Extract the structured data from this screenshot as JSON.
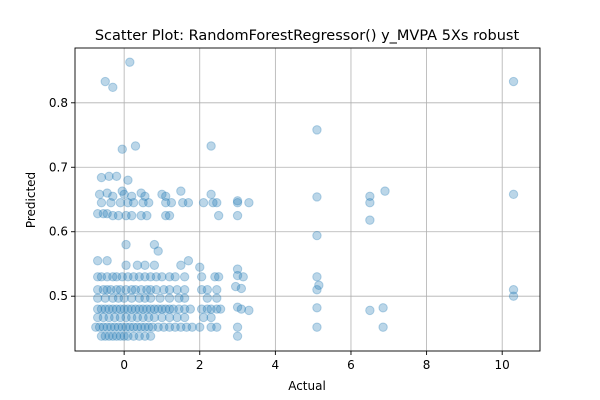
{
  "chart_data": {
    "type": "scatter",
    "title": "Scatter Plot: RandomForestRegressor() y_MVPA 5Xs robust",
    "xlabel": "Actual",
    "ylabel": "Predicted",
    "xlim": [
      -1.3,
      11.0
    ],
    "ylim": [
      0.415,
      0.885
    ],
    "xticks": [
      0,
      2,
      4,
      6,
      8,
      10
    ],
    "yticks": [
      0.5,
      0.6,
      0.7,
      0.8
    ],
    "grid": true,
    "color": "#1f77b4",
    "series": [
      {
        "points": [
          [
            -0.5,
            0.833
          ],
          [
            -0.3,
            0.824
          ],
          [
            0.15,
            0.863
          ],
          [
            10.3,
            0.833
          ],
          [
            5.1,
            0.758
          ],
          [
            0.3,
            0.733
          ],
          [
            -0.05,
            0.728
          ],
          [
            2.3,
            0.733
          ],
          [
            -0.6,
            0.684
          ],
          [
            -0.4,
            0.686
          ],
          [
            -0.2,
            0.686
          ],
          [
            0.1,
            0.68
          ],
          [
            -0.05,
            0.663
          ],
          [
            -0.65,
            0.658
          ],
          [
            -0.45,
            0.66
          ],
          [
            -0.3,
            0.655
          ],
          [
            0.0,
            0.658
          ],
          [
            0.2,
            0.655
          ],
          [
            0.45,
            0.66
          ],
          [
            0.55,
            0.655
          ],
          [
            1.0,
            0.658
          ],
          [
            1.1,
            0.655
          ],
          [
            1.5,
            0.663
          ],
          [
            2.3,
            0.658
          ],
          [
            3.0,
            0.648
          ],
          [
            5.1,
            0.654
          ],
          [
            6.5,
            0.655
          ],
          [
            6.9,
            0.663
          ],
          [
            10.3,
            0.658
          ],
          [
            -0.6,
            0.645
          ],
          [
            -0.35,
            0.645
          ],
          [
            -0.1,
            0.645
          ],
          [
            0.1,
            0.645
          ],
          [
            0.25,
            0.645
          ],
          [
            0.5,
            0.645
          ],
          [
            0.65,
            0.645
          ],
          [
            1.1,
            0.645
          ],
          [
            1.25,
            0.645
          ],
          [
            1.55,
            0.645
          ],
          [
            1.7,
            0.645
          ],
          [
            2.1,
            0.645
          ],
          [
            2.35,
            0.645
          ],
          [
            2.45,
            0.645
          ],
          [
            3.0,
            0.645
          ],
          [
            3.3,
            0.645
          ],
          [
            6.5,
            0.645
          ],
          [
            -0.7,
            0.628
          ],
          [
            -0.55,
            0.628
          ],
          [
            -0.45,
            0.628
          ],
          [
            -0.3,
            0.625
          ],
          [
            -0.15,
            0.625
          ],
          [
            0.05,
            0.625
          ],
          [
            0.2,
            0.625
          ],
          [
            0.45,
            0.625
          ],
          [
            0.6,
            0.625
          ],
          [
            1.1,
            0.625
          ],
          [
            1.2,
            0.625
          ],
          [
            2.5,
            0.625
          ],
          [
            3.0,
            0.625
          ],
          [
            6.5,
            0.618
          ],
          [
            5.1,
            0.594
          ],
          [
            0.05,
            0.58
          ],
          [
            0.8,
            0.58
          ],
          [
            0.9,
            0.57
          ],
          [
            1.7,
            0.555
          ],
          [
            -0.7,
            0.555
          ],
          [
            -0.45,
            0.555
          ],
          [
            0.05,
            0.548
          ],
          [
            0.35,
            0.548
          ],
          [
            0.55,
            0.548
          ],
          [
            0.8,
            0.548
          ],
          [
            1.5,
            0.548
          ],
          [
            2.0,
            0.545
          ],
          [
            3.0,
            0.542
          ],
          [
            -0.7,
            0.53
          ],
          [
            -0.6,
            0.53
          ],
          [
            -0.45,
            0.53
          ],
          [
            -0.3,
            0.53
          ],
          [
            -0.2,
            0.53
          ],
          [
            -0.05,
            0.53
          ],
          [
            0.1,
            0.53
          ],
          [
            0.25,
            0.53
          ],
          [
            0.4,
            0.53
          ],
          [
            0.55,
            0.53
          ],
          [
            0.7,
            0.53
          ],
          [
            0.85,
            0.53
          ],
          [
            1.0,
            0.53
          ],
          [
            1.2,
            0.53
          ],
          [
            1.35,
            0.53
          ],
          [
            1.6,
            0.53
          ],
          [
            2.05,
            0.53
          ],
          [
            2.4,
            0.53
          ],
          [
            2.5,
            0.53
          ],
          [
            3.0,
            0.532
          ],
          [
            3.15,
            0.53
          ],
          [
            5.1,
            0.53
          ],
          [
            10.3,
            0.51
          ],
          [
            10.3,
            0.5
          ],
          [
            5.15,
            0.517
          ],
          [
            5.1,
            0.51
          ],
          [
            -0.7,
            0.51
          ],
          [
            -0.55,
            0.51
          ],
          [
            -0.45,
            0.51
          ],
          [
            -0.35,
            0.51
          ],
          [
            -0.2,
            0.51
          ],
          [
            -0.1,
            0.51
          ],
          [
            0.05,
            0.51
          ],
          [
            0.2,
            0.51
          ],
          [
            0.3,
            0.51
          ],
          [
            0.45,
            0.51
          ],
          [
            0.6,
            0.51
          ],
          [
            0.7,
            0.51
          ],
          [
            0.85,
            0.51
          ],
          [
            1.05,
            0.51
          ],
          [
            1.2,
            0.51
          ],
          [
            1.4,
            0.51
          ],
          [
            1.6,
            0.51
          ],
          [
            2.05,
            0.51
          ],
          [
            2.2,
            0.51
          ],
          [
            2.45,
            0.51
          ],
          [
            2.95,
            0.515
          ],
          [
            3.1,
            0.512
          ],
          [
            -0.7,
            0.497
          ],
          [
            -0.5,
            0.497
          ],
          [
            -0.3,
            0.497
          ],
          [
            -0.15,
            0.497
          ],
          [
            0.0,
            0.497
          ],
          [
            0.2,
            0.497
          ],
          [
            0.4,
            0.497
          ],
          [
            0.55,
            0.497
          ],
          [
            0.7,
            0.497
          ],
          [
            0.95,
            0.497
          ],
          [
            1.2,
            0.497
          ],
          [
            1.45,
            0.497
          ],
          [
            1.6,
            0.497
          ],
          [
            2.2,
            0.497
          ],
          [
            2.45,
            0.497
          ],
          [
            -0.7,
            0.48
          ],
          [
            -0.6,
            0.48
          ],
          [
            -0.5,
            0.48
          ],
          [
            -0.4,
            0.48
          ],
          [
            -0.3,
            0.48
          ],
          [
            -0.2,
            0.48
          ],
          [
            -0.1,
            0.48
          ],
          [
            0.0,
            0.48
          ],
          [
            0.1,
            0.48
          ],
          [
            0.2,
            0.48
          ],
          [
            0.3,
            0.48
          ],
          [
            0.4,
            0.48
          ],
          [
            0.5,
            0.48
          ],
          [
            0.6,
            0.48
          ],
          [
            0.7,
            0.48
          ],
          [
            0.8,
            0.48
          ],
          [
            0.9,
            0.48
          ],
          [
            1.0,
            0.48
          ],
          [
            1.1,
            0.48
          ],
          [
            1.2,
            0.48
          ],
          [
            1.3,
            0.48
          ],
          [
            1.45,
            0.48
          ],
          [
            1.6,
            0.48
          ],
          [
            1.75,
            0.48
          ],
          [
            2.05,
            0.48
          ],
          [
            2.2,
            0.48
          ],
          [
            2.3,
            0.48
          ],
          [
            2.45,
            0.48
          ],
          [
            2.55,
            0.48
          ],
          [
            3.0,
            0.483
          ],
          [
            3.1,
            0.48
          ],
          [
            3.3,
            0.478
          ],
          [
            5.1,
            0.482
          ],
          [
            6.5,
            0.478
          ],
          [
            6.85,
            0.482
          ],
          [
            -0.7,
            0.467
          ],
          [
            -0.55,
            0.467
          ],
          [
            -0.4,
            0.467
          ],
          [
            -0.25,
            0.467
          ],
          [
            -0.1,
            0.467
          ],
          [
            0.05,
            0.467
          ],
          [
            0.2,
            0.467
          ],
          [
            0.35,
            0.467
          ],
          [
            0.5,
            0.467
          ],
          [
            0.65,
            0.467
          ],
          [
            0.8,
            0.467
          ],
          [
            1.0,
            0.467
          ],
          [
            1.2,
            0.467
          ],
          [
            1.4,
            0.467
          ],
          [
            1.6,
            0.467
          ],
          [
            2.1,
            0.467
          ],
          [
            2.3,
            0.467
          ],
          [
            -0.75,
            0.452
          ],
          [
            -0.65,
            0.452
          ],
          [
            -0.55,
            0.452
          ],
          [
            -0.45,
            0.452
          ],
          [
            -0.35,
            0.452
          ],
          [
            -0.25,
            0.452
          ],
          [
            -0.15,
            0.452
          ],
          [
            -0.05,
            0.452
          ],
          [
            0.05,
            0.452
          ],
          [
            0.15,
            0.452
          ],
          [
            0.25,
            0.452
          ],
          [
            0.35,
            0.452
          ],
          [
            0.45,
            0.452
          ],
          [
            0.55,
            0.452
          ],
          [
            0.65,
            0.452
          ],
          [
            0.75,
            0.452
          ],
          [
            0.9,
            0.452
          ],
          [
            1.05,
            0.452
          ],
          [
            1.2,
            0.452
          ],
          [
            1.35,
            0.452
          ],
          [
            1.5,
            0.452
          ],
          [
            1.65,
            0.452
          ],
          [
            1.8,
            0.452
          ],
          [
            2.0,
            0.452
          ],
          [
            2.3,
            0.452
          ],
          [
            2.45,
            0.452
          ],
          [
            3.0,
            0.452
          ],
          [
            5.1,
            0.452
          ],
          [
            6.85,
            0.452
          ],
          [
            -0.6,
            0.438
          ],
          [
            -0.5,
            0.438
          ],
          [
            -0.4,
            0.438
          ],
          [
            -0.3,
            0.438
          ],
          [
            -0.2,
            0.438
          ],
          [
            -0.1,
            0.438
          ],
          [
            0.0,
            0.438
          ],
          [
            0.1,
            0.438
          ],
          [
            0.25,
            0.438
          ],
          [
            0.4,
            0.438
          ],
          [
            0.55,
            0.438
          ],
          [
            0.7,
            0.438
          ],
          [
            3.0,
            0.438
          ]
        ]
      }
    ]
  }
}
